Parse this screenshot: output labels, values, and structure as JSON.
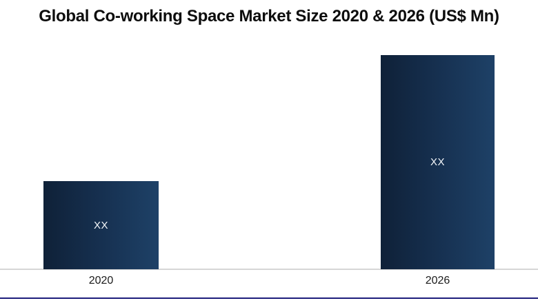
{
  "chart_data": {
    "type": "bar",
    "title": "Global Co-working Space Market Size 2020 & 2026 (US$ Mn)",
    "xlabel": "",
    "ylabel": "",
    "categories": [
      "2020",
      "2026"
    ],
    "values_display": [
      "XX",
      "XX"
    ],
    "relative_heights": [
      0.41,
      1.0
    ],
    "grid": false,
    "legend": false,
    "colors": {
      "bar_gradient_left": "#0f2138",
      "bar_gradient_mid": "#163050",
      "bar_gradient_right": "#1e4167",
      "value_label": "#f5f8fb",
      "axis_line": "#d6d6d6",
      "bottom_border": "#1c1c7a",
      "title_text": "#0d0d0d",
      "tick_text": "#1a1a1a"
    }
  }
}
